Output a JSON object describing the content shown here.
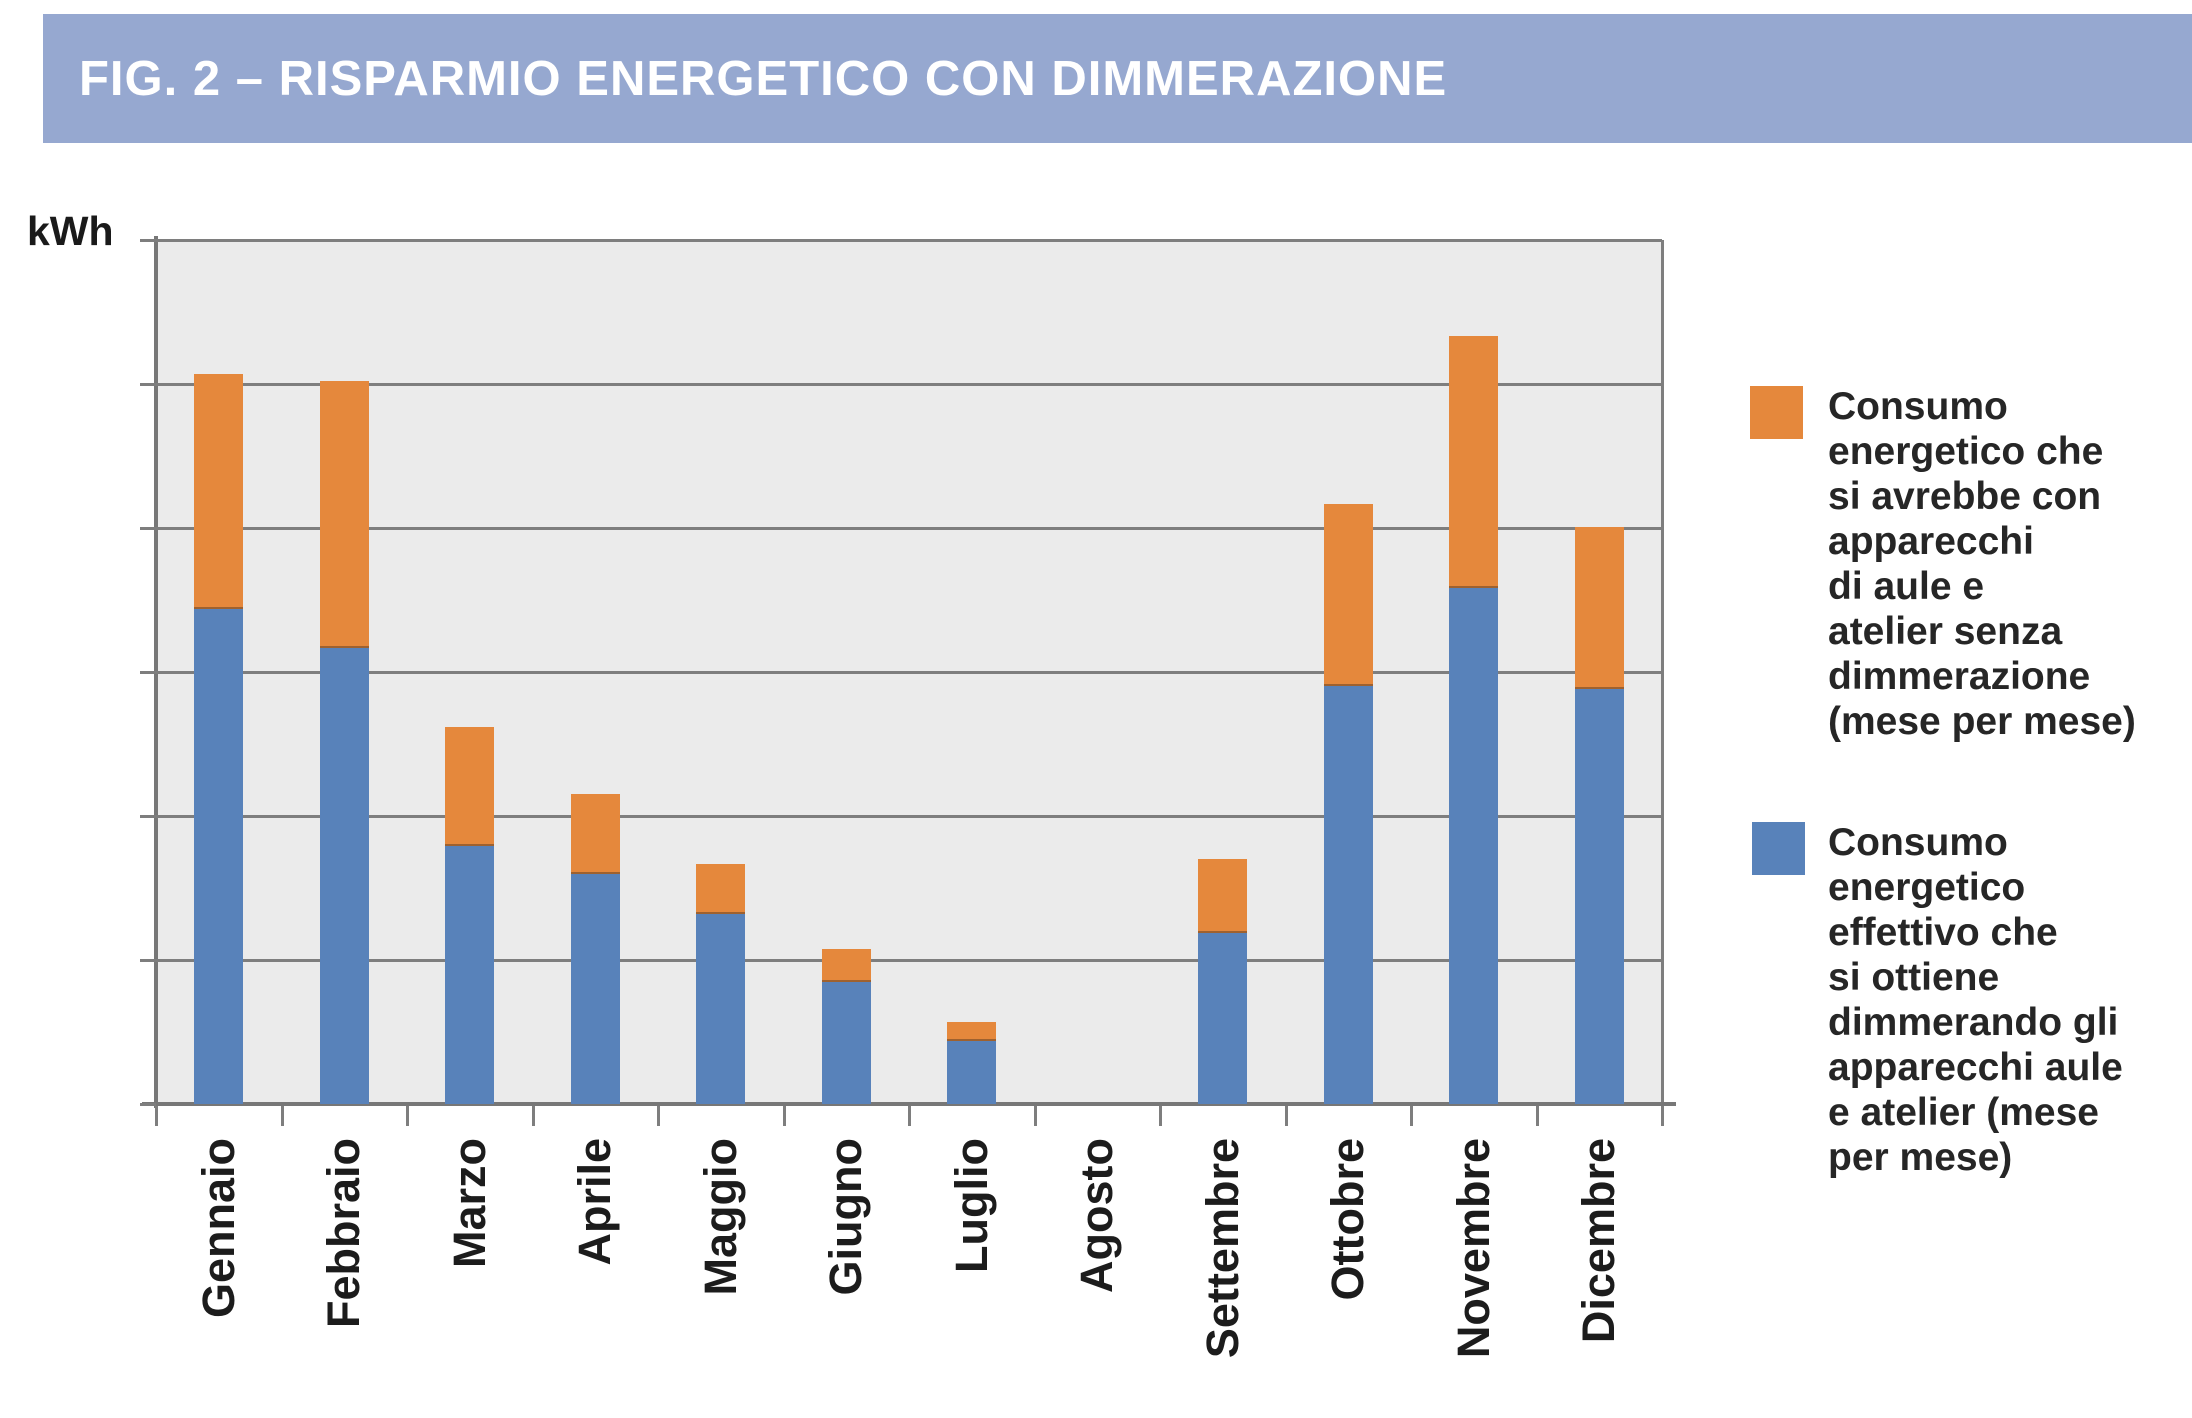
{
  "header": {
    "title": "FIG. 2 – RISPARMIO ENERGETICO CON DIMMERAZIONE"
  },
  "chart": {
    "y_axis_unit": "kWh"
  },
  "legend": {
    "items": [
      {
        "series": "senza-dimmerazione",
        "color": "#E5883C",
        "label": "Consumo\nenergetico che\nsi avrebbe con\napparecchi\ndi aule e\natelier senza\ndimmerazione\n(mese per mese)"
      },
      {
        "series": "con-dimmerazione",
        "color": "#5882BA",
        "label": "Consumo\nenergetico\neffettivo che\nsi ottiene\ndimmerando gli\napparecchi aule\ne atelier (mese\nper mese)"
      }
    ]
  },
  "chart_data": {
    "type": "bar",
    "stacked": true,
    "title": "FIG. 2 – RISPARMIO ENERGETICO CON DIMMERAZIONE",
    "xlabel": "",
    "ylabel": "kWh",
    "categories": [
      "Gennaio",
      "Febbraio",
      "Marzo",
      "Aprile",
      "Maggio",
      "Giugno",
      "Luglio",
      "Agosto",
      "Settembre",
      "Ottobre",
      "Novembre",
      "Dicembre"
    ],
    "series": [
      {
        "name": "Consumo energetico effettivo che si ottiene dimmerando gli apparecchi aule e atelier (mese per mese)",
        "color": "#5882BA",
        "values": [
          3.44,
          3.17,
          1.79,
          1.6,
          1.32,
          0.85,
          0.44,
          0,
          1.19,
          2.9,
          3.58,
          2.88
        ]
      },
      {
        "name": "Consumo energetico che si avrebbe con apparecchi di aule e atelier senza dimmerazione (mese per mese)",
        "color": "#E5883C",
        "values": [
          1.63,
          1.85,
          0.83,
          0.55,
          0.35,
          0.23,
          0.13,
          0,
          0.51,
          1.27,
          1.75,
          1.13
        ]
      }
    ],
    "ylim": [
      0,
      6
    ],
    "y_gridline_interval": 1,
    "y_tick_labels_visible": false,
    "grid": true,
    "legend_position": "right",
    "note": "The source chart shows no numeric y-axis labels; series values are expressed in horizontal-gridline units (1 unit = one gridline interval). Orange is stacked on top of blue."
  }
}
